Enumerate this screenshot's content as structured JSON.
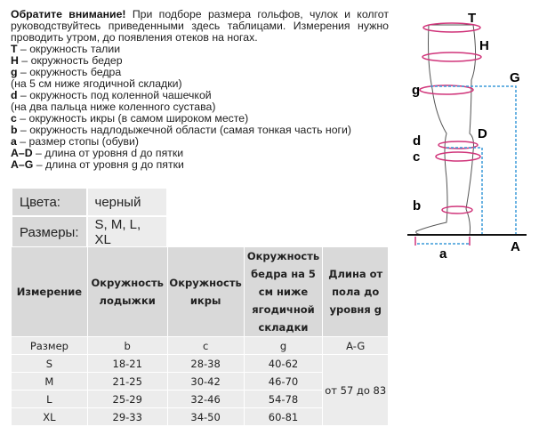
{
  "intro": {
    "bold": "Обратите внимание!",
    "text": " При подборе размера гольфов, чулок и колгот руководствуйтесь приведенными здесь таблицами. Измерения нужно проводить утром, до появления отеков на ногах.",
    "legend": [
      {
        "k": "T",
        "t": " – окружность талии"
      },
      {
        "k": "H",
        "t": " – окружность бедер"
      },
      {
        "k": "g",
        "t": " – окружность бедра"
      },
      {
        "k": "",
        "t": "(на 5 см ниже ягодичной складки)"
      },
      {
        "k": "d",
        "t": " – окружность под коленной чашечкой"
      },
      {
        "k": "",
        "t": "(на два пальца ниже коленного сустава)"
      },
      {
        "k": "c",
        "t": " – окружность икры (в самом широком месте)"
      },
      {
        "k": "b",
        "t": " – окружность надлодыжечной области (самая тонкая часть ноги)"
      },
      {
        "k": "a",
        "t": " – размер стопы (обуви)"
      },
      {
        "k": "A–D",
        "t": " – длина от уровня d до пятки"
      },
      {
        "k": "A–G",
        "t": " – длина от уровня g до пятки"
      }
    ]
  },
  "info": {
    "colors_label": "Цвета:",
    "colors_value": "черный",
    "sizes_label": "Размеры:",
    "sizes_value": "S, M, L, XL"
  },
  "table": {
    "headers": [
      "Измерение",
      "Окружность лодыжки",
      "Окружность икры",
      "Окружность бедра на 5 см ниже ягодичной складки",
      "Длина от пола до уровня g"
    ],
    "subheader": [
      "Размер",
      "b",
      "c",
      "g",
      "A-G"
    ],
    "rows": [
      [
        "S",
        "18-21",
        "28-38",
        "40-62"
      ],
      [
        "M",
        "21-25",
        "30-42",
        "46-70"
      ],
      [
        "L",
        "25-29",
        "32-46",
        "54-78"
      ],
      [
        "XL",
        "29-33",
        "34-50",
        "60-81"
      ]
    ],
    "length": "от 57 до 83"
  },
  "diagram": {
    "labels": {
      "T": "T",
      "H": "H",
      "G": "G",
      "g": "g",
      "D": "D",
      "d": "d",
      "c": "c",
      "b": "b",
      "A": "A",
      "a": "a"
    },
    "ring_color": "#d0347a",
    "dash_color": "#3a9ad9"
  }
}
